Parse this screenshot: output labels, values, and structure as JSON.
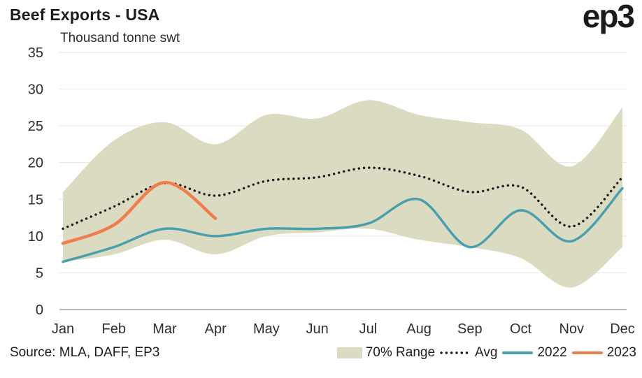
{
  "header": {
    "title": "Beef Exports - USA",
    "logo": "ep3"
  },
  "chart_data": {
    "type": "line",
    "title": "Beef Exports - USA",
    "subtitle": "Thousand tonne swt",
    "categories": [
      "Jan",
      "Feb",
      "Mar",
      "Apr",
      "May",
      "Jun",
      "Jul",
      "Aug",
      "Sep",
      "Oct",
      "Nov",
      "Dec"
    ],
    "ylim": [
      0,
      35
    ],
    "yticks": [
      0,
      5,
      10,
      15,
      20,
      25,
      30,
      35
    ],
    "grid": true,
    "legend_position": "bottom",
    "band": {
      "name": "70% Range",
      "color": "#dbdbc2",
      "upper": [
        16,
        23,
        25.5,
        22.5,
        26.5,
        26,
        28.5,
        26.5,
        25.5,
        24.5,
        19.5,
        27.5
      ],
      "lower": [
        6.5,
        7.5,
        9.5,
        7.5,
        10,
        10.5,
        11,
        9.5,
        8.5,
        7,
        3,
        8.5
      ]
    },
    "series": [
      {
        "name": "Avg",
        "style": "dotted",
        "color": "#1a1a1a",
        "values": [
          11,
          14,
          17.2,
          15.5,
          17.5,
          18,
          19.3,
          18.2,
          16,
          16.7,
          11.3,
          18
        ]
      },
      {
        "name": "2022",
        "style": "solid",
        "color": "#4a9fad",
        "values": [
          6.5,
          8.5,
          11,
          10,
          11,
          11,
          11.7,
          15,
          8.5,
          13.5,
          9.3,
          16.5
        ]
      },
      {
        "name": "2023",
        "style": "solid",
        "color": "#ef7d4d",
        "values": [
          9,
          11.5,
          17.3,
          12.4
        ]
      }
    ]
  },
  "footer": {
    "source": "Source: MLA, DAFF, EP3"
  }
}
